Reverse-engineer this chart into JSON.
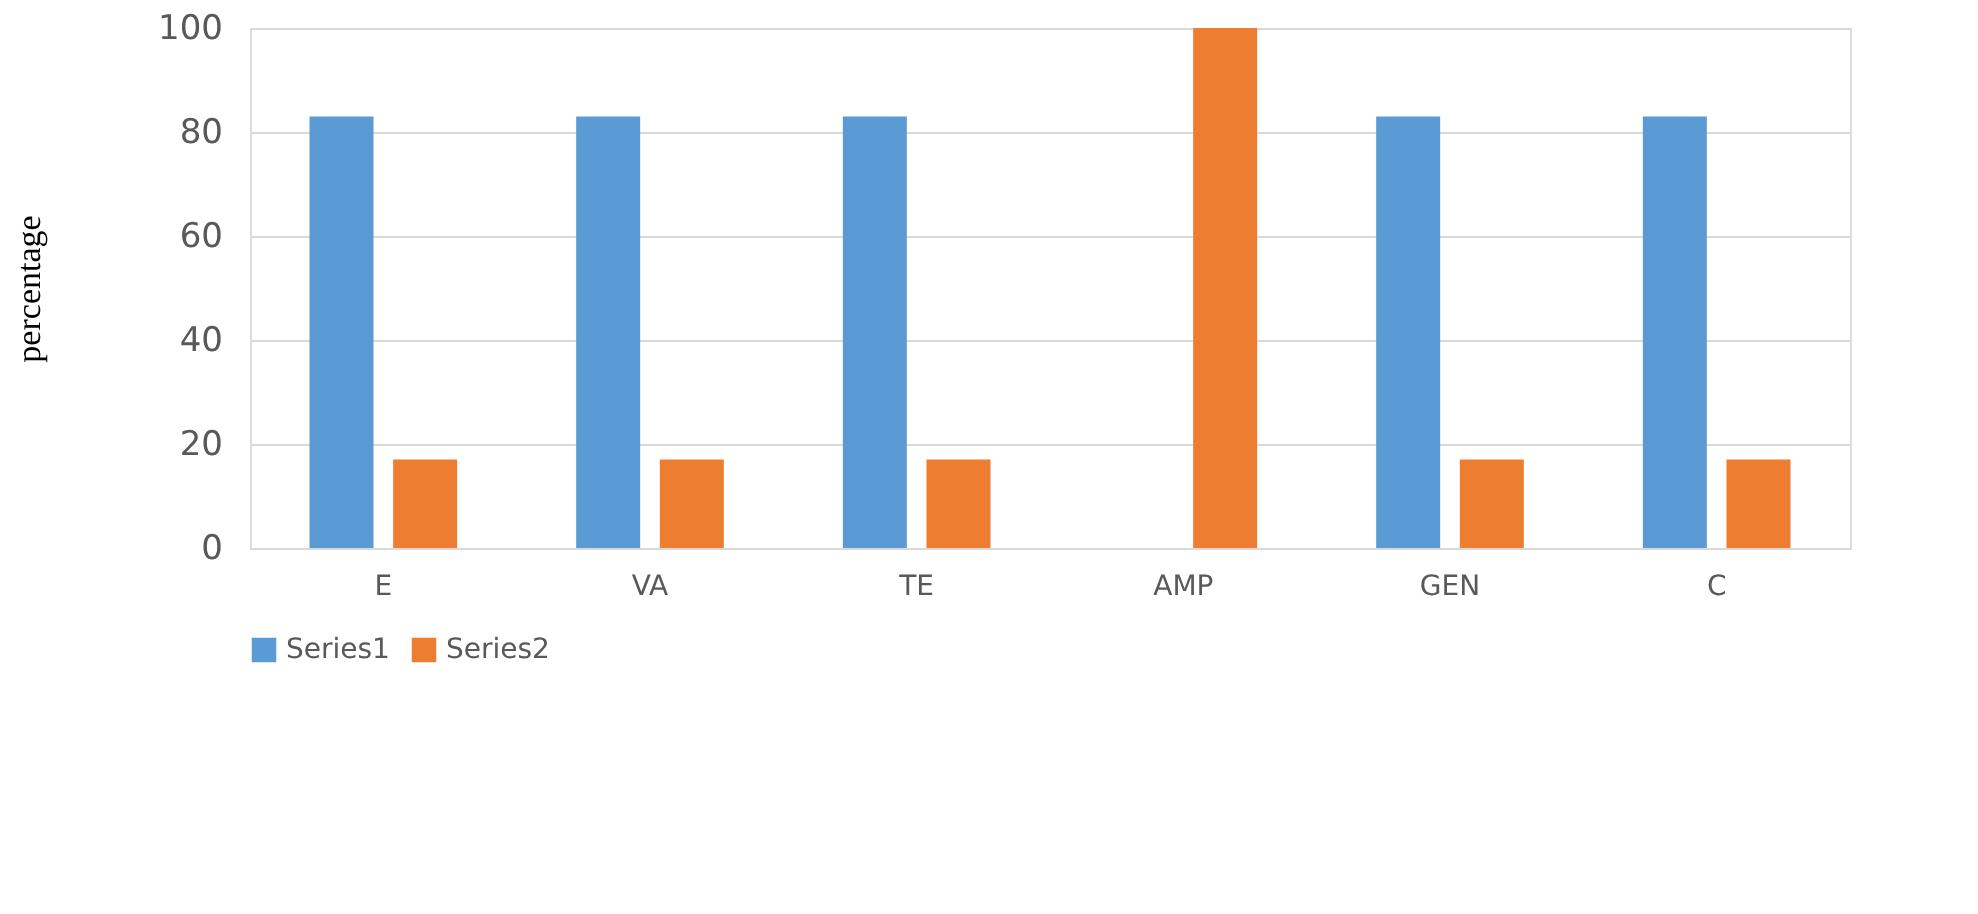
{
  "chart_data": {
    "type": "bar",
    "ylabel": "percentage",
    "categories": [
      "E",
      "VA",
      "TE",
      "AMP",
      "GEN",
      "C"
    ],
    "series": [
      {
        "name": "Series1",
        "color": "#5b9bd5",
        "values": [
          83,
          83,
          83,
          null,
          83,
          83
        ]
      },
      {
        "name": "Series2",
        "color": "#ed7d31",
        "values": [
          17,
          17,
          17,
          100,
          17,
          17
        ]
      }
    ],
    "ylim": [
      0,
      100
    ],
    "yticks": [
      0,
      20,
      40,
      60,
      80,
      100
    ],
    "grid": "y",
    "legend": "bottom"
  }
}
